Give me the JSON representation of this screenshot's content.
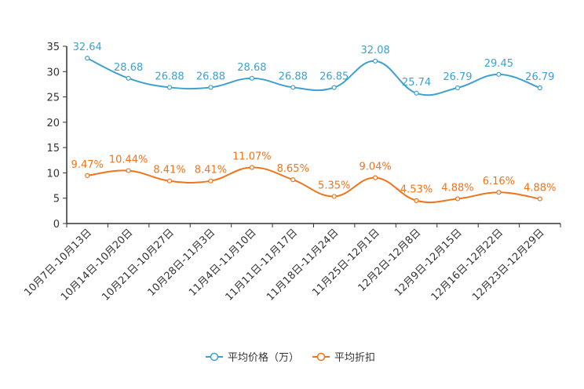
{
  "chart_data": {
    "type": "line",
    "title": "",
    "xlabel": "",
    "ylabel": "",
    "ylim": [
      0,
      35
    ],
    "yticks": [
      0,
      5,
      10,
      15,
      20,
      25,
      30,
      35
    ],
    "categories": [
      "10月7日-10月13日",
      "10月14日-10月20日",
      "10月21日-10月27日",
      "10月28日-11月3日",
      "11月4日-11月10日",
      "11月11日-11月17日",
      "11月18日-11月24日",
      "11月25日-12月1日",
      "12月2日-12月8日",
      "12月9日-12月15日",
      "12月16日-12月22日",
      "12月23日-12月29日"
    ],
    "series": [
      {
        "name": "平均价格（万）",
        "color": "#3fa0cf",
        "values": [
          32.64,
          28.68,
          26.88,
          26.88,
          28.68,
          26.88,
          26.85,
          32.08,
          25.74,
          26.79,
          29.45,
          26.79
        ],
        "labels": [
          "32.64",
          "28.68",
          "26.88",
          "26.88",
          "28.68",
          "26.88",
          "26.85",
          "32.08",
          "25.74",
          "26.79",
          "29.45",
          "26.79"
        ]
      },
      {
        "name": "平均折扣",
        "color": "#f0741a",
        "values": [
          9.47,
          10.44,
          8.41,
          8.41,
          11.07,
          8.65,
          5.35,
          9.04,
          4.53,
          4.88,
          6.16,
          4.88
        ],
        "labels": [
          "9.47%",
          "10.44%",
          "8.41%",
          "8.41%",
          "11.07%",
          "8.65%",
          "5.35%",
          "9.04%",
          "4.53%",
          "4.88%",
          "6.16%",
          "4.88%"
        ]
      }
    ],
    "legend_position": "bottom-center"
  }
}
